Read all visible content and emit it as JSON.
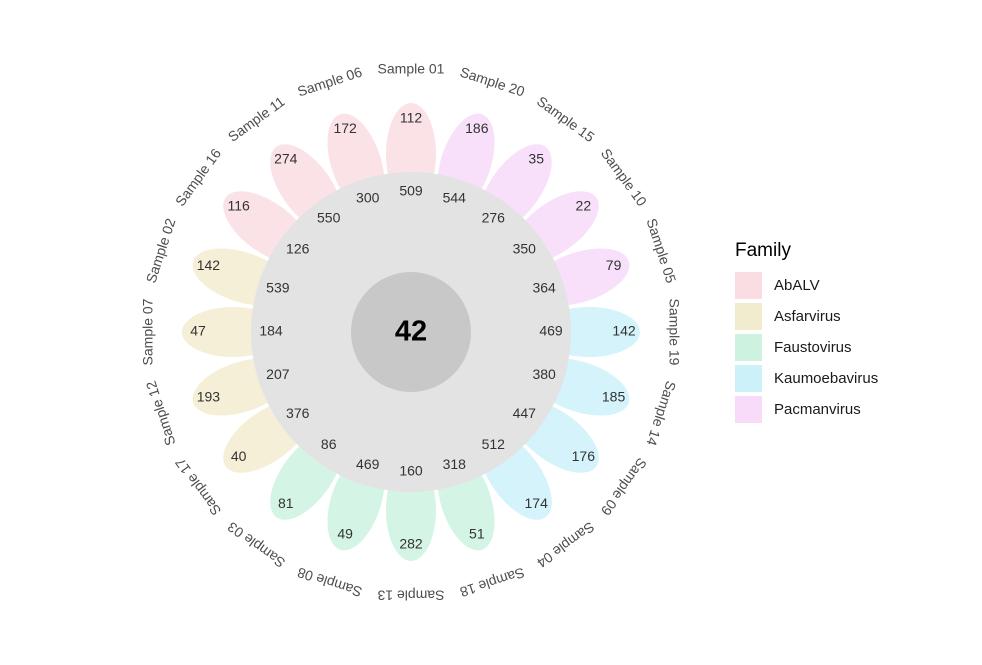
{
  "chart_data": {
    "type": "flower",
    "center_value": "42",
    "petals": [
      {
        "sample": "Sample 01",
        "family": "AbALV",
        "outer": "112",
        "inner": "509"
      },
      {
        "sample": "Sample 20",
        "family": "Pacmanvirus",
        "outer": "186",
        "inner": "544"
      },
      {
        "sample": "Sample 15",
        "family": "Pacmanvirus",
        "outer": "35",
        "inner": "276"
      },
      {
        "sample": "Sample 10",
        "family": "Pacmanvirus",
        "outer": "22",
        "inner": "350"
      },
      {
        "sample": "Sample 05",
        "family": "Pacmanvirus",
        "outer": "79",
        "inner": "364"
      },
      {
        "sample": "Sample 19",
        "family": "Kaumoebavirus",
        "outer": "142",
        "inner": "469"
      },
      {
        "sample": "Sample 14",
        "family": "Kaumoebavirus",
        "outer": "185",
        "inner": "380"
      },
      {
        "sample": "Sample 09",
        "family": "Kaumoebavirus",
        "outer": "176",
        "inner": "447"
      },
      {
        "sample": "Sample 04",
        "family": "Kaumoebavirus",
        "outer": "174",
        "inner": "512"
      },
      {
        "sample": "Sample 18",
        "family": "Faustovirus",
        "outer": "51",
        "inner": "318"
      },
      {
        "sample": "Sample 13",
        "family": "Faustovirus",
        "outer": "282",
        "inner": "160"
      },
      {
        "sample": "Sample 08",
        "family": "Faustovirus",
        "outer": "49",
        "inner": "469"
      },
      {
        "sample": "Sample 03",
        "family": "Faustovirus",
        "outer": "81",
        "inner": "86"
      },
      {
        "sample": "Sample 17",
        "family": "Asfarvirus",
        "outer": "40",
        "inner": "376"
      },
      {
        "sample": "Sample 12",
        "family": "Asfarvirus",
        "outer": "193",
        "inner": "207"
      },
      {
        "sample": "Sample 07",
        "family": "Asfarvirus",
        "outer": "47",
        "inner": "184"
      },
      {
        "sample": "Sample 02",
        "family": "Asfarvirus",
        "outer": "142",
        "inner": "539"
      },
      {
        "sample": "Sample 16",
        "family": "AbALV",
        "outer": "116",
        "inner": "126"
      },
      {
        "sample": "Sample 11",
        "family": "AbALV",
        "outer": "274",
        "inner": "550"
      },
      {
        "sample": "Sample 06",
        "family": "AbALV",
        "outer": "172",
        "inner": "300"
      }
    ],
    "legend": {
      "title": "Family",
      "placement": "right",
      "entries": [
        {
          "label": "AbALV",
          "color": "#f9dde3"
        },
        {
          "label": "Asfarvirus",
          "color": "#f2eccf"
        },
        {
          "label": "Faustovirus",
          "color": "#cdf3e0"
        },
        {
          "label": "Kaumoebavirus",
          "color": "#cdf1f9"
        },
        {
          "label": "Pacmanvirus",
          "color": "#f7dbf9"
        }
      ]
    },
    "colors": {
      "ring": "#e3e3e3",
      "core": "#c8c8c8",
      "value_text": "#333333",
      "label_text": "#4d4d4d"
    }
  }
}
